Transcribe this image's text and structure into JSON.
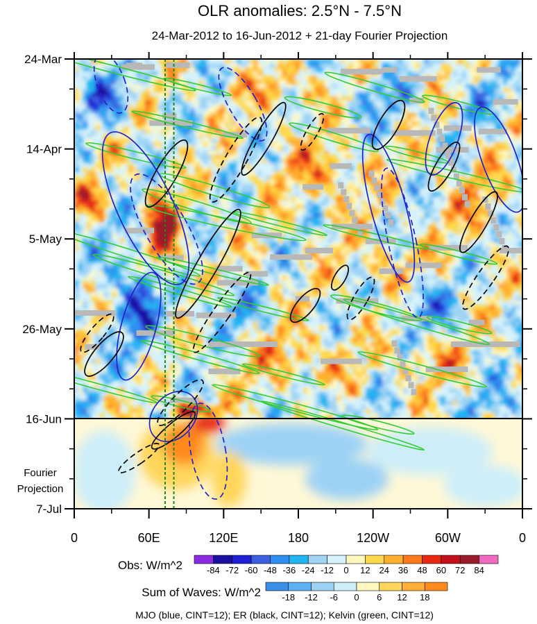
{
  "chart_data": {
    "type": "heatmap",
    "title": "OLR anomalies: 2.5°N - 7.5°N",
    "subtitle": "24-Mar-2012 to 16-Jun-2012 + 21-day Fourier Projection",
    "x_tick_labels": [
      "0",
      "60E",
      "120E",
      "180",
      "120W",
      "60W",
      "0"
    ],
    "x_tick_longitudes": [
      0,
      60,
      120,
      180,
      240,
      300,
      360
    ],
    "y_tick_labels": [
      "24-Mar",
      "14-Apr",
      "5-May",
      "26-May",
      "16-Jun",
      "7-Jul"
    ],
    "y_tick_day_offsets": [
      0,
      21,
      42,
      63,
      84,
      105
    ],
    "projection_label_line1": "Fourier",
    "projection_label_line2": "Projection",
    "projection_start_label": "16-Jun",
    "obs_colorbar": {
      "label": "Obs: W/m^2",
      "tick_labels": [
        "-84",
        "-72",
        "-60",
        "-48",
        "-36",
        "-24",
        "-12",
        "0",
        "12",
        "24",
        "36",
        "48",
        "60",
        "72",
        "84"
      ],
      "colors": [
        "#8a2be2",
        "#1b0f9e",
        "#1f1fd6",
        "#3a5fe0",
        "#2f8ff0",
        "#21b5f2",
        "#9fd4f5",
        "#d6f2fb",
        "#fff8bf",
        "#ffd84a",
        "#ffb02e",
        "#ff7a1a",
        "#e82a14",
        "#c4101c",
        "#9a1c2a",
        "#f06ac0"
      ]
    },
    "waves_colorbar": {
      "label": "Sum of Waves: W/m^2",
      "tick_labels": [
        "-18",
        "-12",
        "-6",
        "0",
        "6",
        "12",
        "18"
      ],
      "colors": [
        "#3a8fe8",
        "#5fb0f0",
        "#9dd2f5",
        "#cdeef9",
        "#fff6c0",
        "#ffd65a",
        "#ffb035",
        "#ff8a1e"
      ]
    },
    "footer": "MJO (blue, CINT=12); ER (black, CINT=12); Kelvin (green, CINT=12)",
    "contour_colors": {
      "mjo": "#2222cc",
      "er": "#000000",
      "kelvin": "#33cc33",
      "missing": "#b8b8b8",
      "marker_lines": "#1a8a1a"
    },
    "marker_longitudes": [
      73,
      80
    ]
  }
}
